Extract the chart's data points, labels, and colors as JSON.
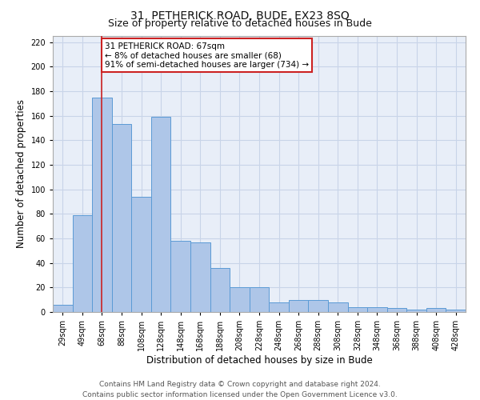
{
  "title": "31, PETHERICK ROAD, BUDE, EX23 8SQ",
  "subtitle": "Size of property relative to detached houses in Bude",
  "xlabel": "Distribution of detached houses by size in Bude",
  "ylabel": "Number of detached properties",
  "bar_labels": [
    "29sqm",
    "49sqm",
    "68sqm",
    "88sqm",
    "108sqm",
    "128sqm",
    "148sqm",
    "168sqm",
    "188sqm",
    "208sqm",
    "228sqm",
    "248sqm",
    "268sqm",
    "288sqm",
    "308sqm",
    "328sqm",
    "348sqm",
    "368sqm",
    "388sqm",
    "408sqm",
    "428sqm"
  ],
  "bar_values": [
    6,
    79,
    175,
    153,
    94,
    159,
    58,
    57,
    36,
    20,
    20,
    8,
    10,
    10,
    8,
    4,
    4,
    3,
    2,
    3,
    2
  ],
  "bar_color": "#aec6e8",
  "bar_edge_color": "#5b9bd5",
  "vline_x_index": 2,
  "vline_color": "#cc2222",
  "annotation_text": "31 PETHERICK ROAD: 67sqm\n← 8% of detached houses are smaller (68)\n91% of semi-detached houses are larger (734) →",
  "annotation_box_color": "#ffffff",
  "annotation_box_edge": "#cc2222",
  "ylim": [
    0,
    225
  ],
  "yticks": [
    0,
    20,
    40,
    60,
    80,
    100,
    120,
    140,
    160,
    180,
    200,
    220
  ],
  "grid_color": "#c8d4e8",
  "bg_color": "#e8eef8",
  "footer": "Contains HM Land Registry data © Crown copyright and database right 2024.\nContains public sector information licensed under the Open Government Licence v3.0.",
  "title_fontsize": 10,
  "subtitle_fontsize": 9,
  "xlabel_fontsize": 8.5,
  "ylabel_fontsize": 8.5,
  "tick_fontsize": 7,
  "footer_fontsize": 6.5,
  "annotation_fontsize": 7.5
}
